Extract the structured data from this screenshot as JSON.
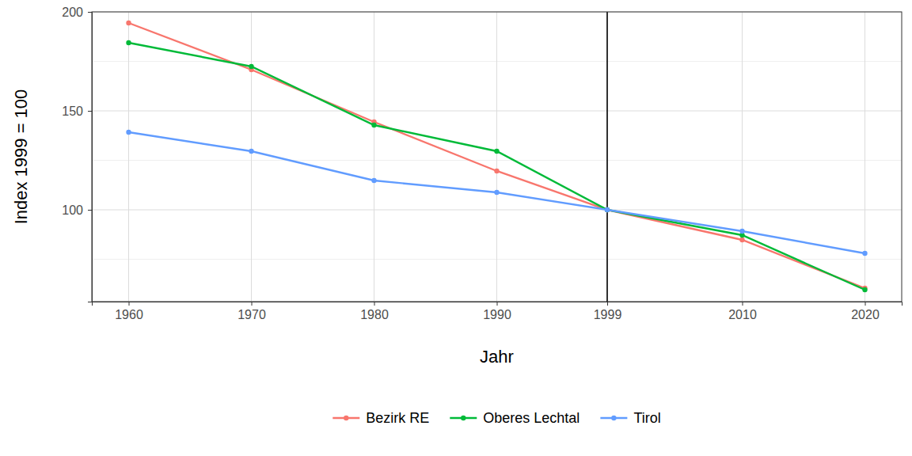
{
  "chart_data": {
    "type": "line",
    "x_label": "Jahr",
    "y_label": "Index 1999 = 100",
    "x": [
      1960,
      1970,
      1980,
      1990,
      1999,
      2010,
      2020
    ],
    "xlim": [
      1957,
      2023
    ],
    "xticks": [
      1960,
      1970,
      1980,
      1990,
      1999,
      2010,
      2020
    ],
    "ylim": [
      53.6,
      200
    ],
    "yticks": [
      100,
      150,
      200
    ],
    "grid": true,
    "legend": "bottom",
    "marker": "circle",
    "vline": 1999,
    "series": [
      {
        "name": "Bezirk RE",
        "color": "#F8766D",
        "values": [
          194.4,
          170.8,
          144.4,
          119.6,
          100,
          84.8,
          60.4
        ]
      },
      {
        "name": "Oberes Lechtal",
        "color": "#00BA38",
        "values": [
          184.4,
          172.4,
          142.8,
          129.6,
          100,
          87.2,
          59.6
        ]
      },
      {
        "name": "Tirol",
        "color": "#619CFF",
        "values": [
          139.2,
          129.6,
          114.8,
          108.8,
          100,
          89.2,
          78
        ]
      }
    ]
  }
}
